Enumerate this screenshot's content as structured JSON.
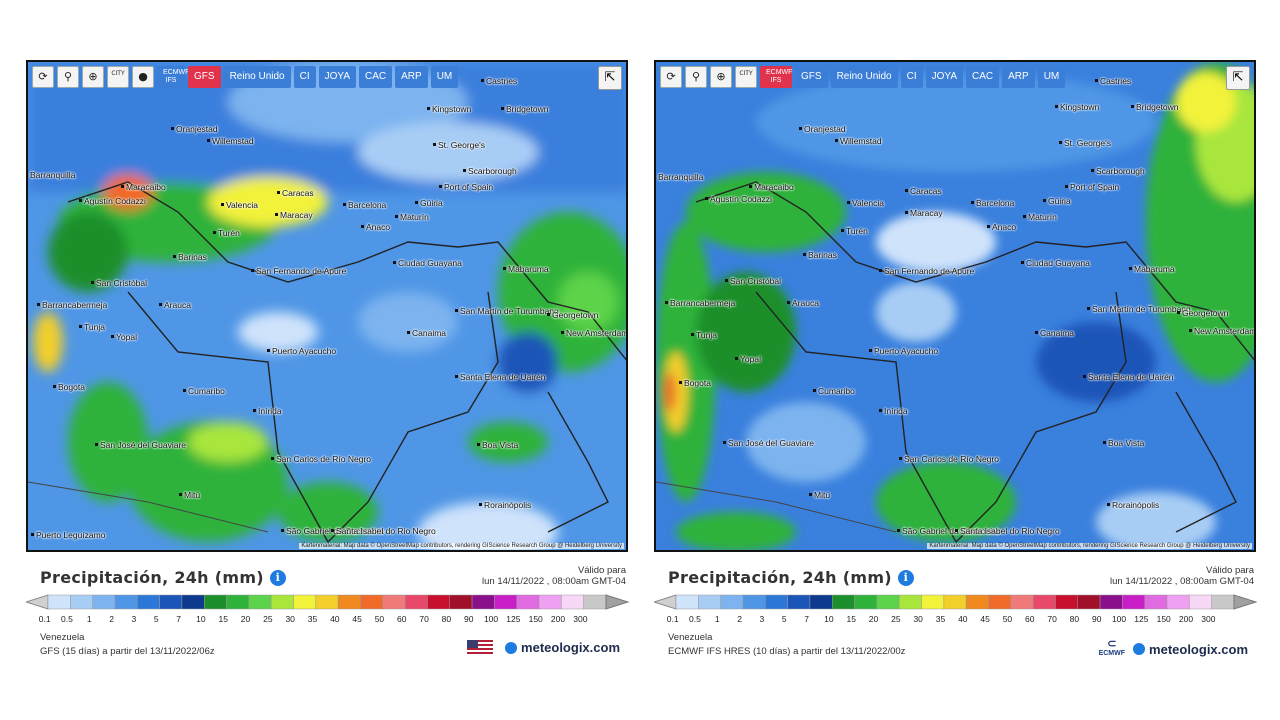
{
  "panels": [
    {
      "id": "left",
      "toolbar": {
        "refresh_label": "⟳",
        "pin_label": "⚲",
        "zoom_label": "⊕",
        "city_label": "CITY",
        "dot_label": "●",
        "models": [
          {
            "label": "ECMWF IFS",
            "active": false
          },
          {
            "label": "GFS",
            "active": true
          },
          {
            "label": "Reino Unido",
            "active": false
          },
          {
            "label": "CI",
            "active": false
          },
          {
            "label": "JOYA",
            "active": false
          },
          {
            "label": "CAC",
            "active": false
          },
          {
            "label": "ARP",
            "active": false
          },
          {
            "label": "UM",
            "active": false
          }
        ]
      },
      "title": "Precipitación, 24h (mm)",
      "valid_label": "Válido para",
      "valid_date": "lun 14/11/2022 , 08:00am GMT-04",
      "region": "Venezuela",
      "run_info": "GFS (15 días) a partir del 13/11/2022/06z",
      "brand": "meteologix.com",
      "attribution": "Kartenmaterial: Map data © OpenStreetMap contributors, rendering GIScience Research Group @ Heidelberg University"
    },
    {
      "id": "right",
      "toolbar": {
        "refresh_label": "⟳",
        "pin_label": "⚲",
        "zoom_label": "⊕",
        "city_label": "CITY",
        "models": [
          {
            "label": "ECMWF IFS",
            "active": true
          },
          {
            "label": "GFS",
            "active": false
          },
          {
            "label": "Reino Unido",
            "active": false
          },
          {
            "label": "CI",
            "active": false
          },
          {
            "label": "JOYA",
            "active": false
          },
          {
            "label": "CAC",
            "active": false
          },
          {
            "label": "ARP",
            "active": false
          },
          {
            "label": "UM",
            "active": false
          }
        ]
      },
      "title": "Precipitación, 24h (mm)",
      "valid_label": "Válido para",
      "valid_date": "lun 14/11/2022 , 08:00am GMT-04",
      "region": "Venezuela",
      "run_info": "ECMWF IFS HRES (10 días) a partir del 13/11/2022/00z",
      "brand": "meteologix.com",
      "ecmwf_logo_text": "ECMWF",
      "attribution": "Kartenmaterial: Map data © OpenStreetMap contributors, rendering GIScience Research Group @ Heidelberg University"
    }
  ],
  "scale": {
    "ticks": [
      "0.1",
      "0.5",
      "1",
      "2",
      "3",
      "5",
      "7",
      "10",
      "15",
      "20",
      "25",
      "30",
      "35",
      "40",
      "45",
      "50",
      "60",
      "70",
      "80",
      "90",
      "100",
      "125",
      "150",
      "200",
      "300"
    ],
    "colors": [
      "#cfe3fb",
      "#a8cdf5",
      "#7db4ef",
      "#4f96e6",
      "#2c78d9",
      "#1b55b8",
      "#0d3a8e",
      "#1a8f2b",
      "#2fb23a",
      "#5cd34a",
      "#a8e63c",
      "#f2f23a",
      "#f2cf2a",
      "#f08a1e",
      "#f06a2a",
      "#f07a7a",
      "#e8486a",
      "#c8102e",
      "#a0102a",
      "#8a0f8a",
      "#c81ec8",
      "#e06ae0",
      "#f0a0f0",
      "#f7d8f7",
      "#c8c8c8"
    ]
  },
  "cities": {
    "left": [
      {
        "name": "Castries"
      },
      {
        "name": "Kingstown"
      },
      {
        "name": "Bridgetown"
      },
      {
        "name": "Oranjestad"
      },
      {
        "name": "Willemstad"
      },
      {
        "name": "St. George's"
      },
      {
        "name": "Scarborough"
      },
      {
        "name": "Port of Spain"
      },
      {
        "name": "Barranquilla"
      },
      {
        "name": "Maracaibo"
      },
      {
        "name": "Caracas"
      },
      {
        "name": "Valencia"
      },
      {
        "name": "Maracay"
      },
      {
        "name": "Barcelona"
      },
      {
        "name": "Güiria"
      },
      {
        "name": "Maturín"
      },
      {
        "name": "Agustín Codazzi"
      },
      {
        "name": "Turén"
      },
      {
        "name": "Anaco"
      },
      {
        "name": "Barinas"
      },
      {
        "name": "San Fernando de Apure"
      },
      {
        "name": "Ciudad Guayana"
      },
      {
        "name": "Mabaruma"
      },
      {
        "name": "San Cristóbal"
      },
      {
        "name": "Barrancabermeja"
      },
      {
        "name": "Arauca"
      },
      {
        "name": "San Martín de Turumbang"
      },
      {
        "name": "Georgetown"
      },
      {
        "name": "New Amsterdam"
      },
      {
        "name": "Canaima"
      },
      {
        "name": "Puerto Ayacucho"
      },
      {
        "name": "Tunja"
      },
      {
        "name": "Yopal"
      },
      {
        "name": "Bogota"
      },
      {
        "name": "Cumaribo"
      },
      {
        "name": "Santa Elena de Uairén"
      },
      {
        "name": "Inírida"
      },
      {
        "name": "San José del Guaviare"
      },
      {
        "name": "Boa Vista"
      },
      {
        "name": "San Carlos de Río Negro"
      },
      {
        "name": "Mitú"
      },
      {
        "name": "Rorainópolis"
      },
      {
        "name": "São Gabriel da Cachoeira"
      },
      {
        "name": "Santa Isabel do Rio Negro"
      },
      {
        "name": "Puerto Leguízamo"
      }
    ]
  }
}
